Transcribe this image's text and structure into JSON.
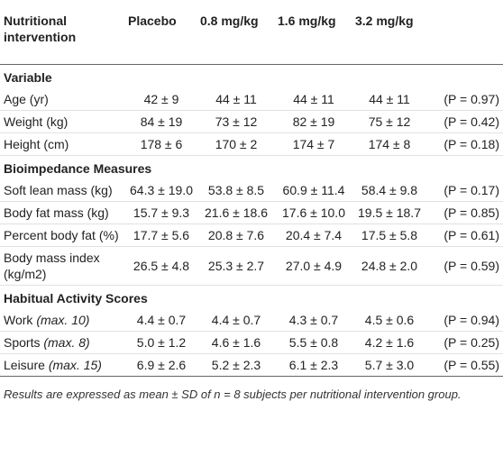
{
  "header": {
    "columns": [
      "Nutritional intervention",
      "Placebo",
      "0.8 mg/kg",
      "1.6 mg/kg",
      "3.2 mg/kg"
    ]
  },
  "sections": [
    {
      "title": "Variable",
      "rows": [
        {
          "label": "Age (yr)",
          "values": [
            "42 ± 9",
            "44 ± 11",
            "44 ± 11",
            "44 ± 11"
          ],
          "p": "(P = 0.97)"
        },
        {
          "label": "Weight (kg)",
          "values": [
            "84 ± 19",
            "73 ± 12",
            "82 ± 19",
            "75 ± 12"
          ],
          "p": "(P = 0.42)"
        },
        {
          "label": "Height (cm)",
          "values": [
            "178 ± 6",
            "170 ± 2",
            "174 ± 7",
            "174 ± 8"
          ],
          "p": "(P = 0.18)"
        }
      ]
    },
    {
      "title": "Bioimpedance Measures",
      "rows": [
        {
          "label": "Soft lean mass (kg)",
          "values": [
            "64.3 ± 19.0",
            "53.8 ± 8.5",
            "60.9 ± 11.4",
            "58.4 ± 9.8"
          ],
          "p": "(P = 0.17)"
        },
        {
          "label": "Body fat mass (kg)",
          "values": [
            "15.7 ± 9.3",
            "21.6 ± 18.6",
            "17.6 ± 10.0",
            "19.5 ± 18.7"
          ],
          "p": "(P = 0.85)"
        },
        {
          "label": "Percent body fat (%)",
          "values": [
            "17.7 ± 5.6",
            "20.8 ± 7.6",
            "20.4 ± 7.4",
            "17.5 ± 5.8"
          ],
          "p": "(P = 0.61)"
        },
        {
          "label": "Body mass index (kg/m2)",
          "values": [
            "26.5 ± 4.8",
            "25.3 ± 2.7",
            "27.0 ± 4.9",
            "24.8 ± 2.0"
          ],
          "p": "(P = 0.59)"
        }
      ]
    },
    {
      "title": "Habitual Activity Scores",
      "rows": [
        {
          "label": "Work",
          "note": "(max. 10)",
          "values": [
            "4.4 ± 0.7",
            "4.4 ± 0.7",
            "4.3 ± 0.7",
            "4.5 ± 0.6"
          ],
          "p": "(P = 0.94)"
        },
        {
          "label": "Sports",
          "note": "(max. 8)",
          "values": [
            "5.0 ± 1.2",
            "4.6 ± 1.6",
            "5.5 ± 0.8",
            "4.2 ± 1.6"
          ],
          "p": "(P = 0.25)"
        },
        {
          "label": "Leisure",
          "note": "(max. 15)",
          "values": [
            "6.9 ± 2.6",
            "5.2 ± 2.3",
            "6.1 ± 2.3",
            "5.7 ± 3.0"
          ],
          "p": "(P = 0.55)"
        }
      ]
    }
  ],
  "footnote": "Results are expressed as mean ± SD of n = 8 subjects per nutritional intervention group."
}
